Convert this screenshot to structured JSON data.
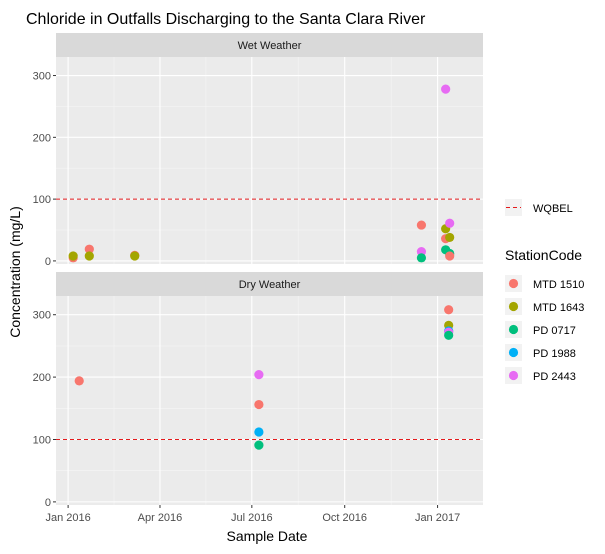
{
  "chart_data": {
    "type": "scatter",
    "title": "Chloride in Outfalls Discharging to the Santa Clara River",
    "xlabel": "Sample Date",
    "ylabel": "Concentration (mg/L)",
    "xlim": [
      "2015-12-20",
      "2017-02-15"
    ],
    "ylim": [
      -5,
      330
    ],
    "x_ticks": [
      {
        "date": "2016-01-01",
        "label": "Jan 2016"
      },
      {
        "date": "2016-04-01",
        "label": "Apr 2016"
      },
      {
        "date": "2016-07-01",
        "label": "Jul 2016"
      },
      {
        "date": "2016-10-01",
        "label": "Oct 2016"
      },
      {
        "date": "2017-01-01",
        "label": "Jan 2017"
      }
    ],
    "y_ticks": [
      0,
      100,
      200,
      300
    ],
    "grid": true,
    "reference_line": {
      "label": "WQBEL",
      "value": 100,
      "color": "#e41a1c",
      "style": "dashed"
    },
    "legend": {
      "title": "StationCode",
      "placement": "right"
    },
    "stations": [
      {
        "name": "MTD 1510",
        "color": "#F8766D"
      },
      {
        "name": "MTD 1643",
        "color": "#A3A500"
      },
      {
        "name": "PD 0717",
        "color": "#00BF7D"
      },
      {
        "name": "PD 1988",
        "color": "#00B0F6"
      },
      {
        "name": "PD 2443",
        "color": "#E76BF3"
      }
    ],
    "panels": [
      {
        "label": "Wet Weather",
        "points": [
          {
            "station": "MTD 1510",
            "x": "2016-01-06",
            "y": 5
          },
          {
            "station": "MTD 1643",
            "x": "2016-01-06",
            "y": 8
          },
          {
            "station": "MTD 1510",
            "x": "2016-01-22",
            "y": 19
          },
          {
            "station": "MTD 1643",
            "x": "2016-01-22",
            "y": 8
          },
          {
            "station": "MTD 1510",
            "x": "2016-03-07",
            "y": 9
          },
          {
            "station": "MTD 1643",
            "x": "2016-03-07",
            "y": 8
          },
          {
            "station": "MTD 1510",
            "x": "2016-12-16",
            "y": 58
          },
          {
            "station": "PD 2443",
            "x": "2016-12-16",
            "y": 15
          },
          {
            "station": "PD 0717",
            "x": "2016-12-16",
            "y": 5
          },
          {
            "station": "MTD 1643",
            "x": "2017-01-09",
            "y": 52
          },
          {
            "station": "MTD 1510",
            "x": "2017-01-09",
            "y": 36
          },
          {
            "station": "PD 0717",
            "x": "2017-01-09",
            "y": 18
          },
          {
            "station": "PD 2443",
            "x": "2017-01-09",
            "y": 278
          },
          {
            "station": "PD 2443",
            "x": "2017-01-13",
            "y": 61
          },
          {
            "station": "MTD 1643",
            "x": "2017-01-13",
            "y": 38
          },
          {
            "station": "PD 0717",
            "x": "2017-01-13",
            "y": 12
          },
          {
            "station": "MTD 1510",
            "x": "2017-01-13",
            "y": 8
          }
        ]
      },
      {
        "label": "Dry Weather",
        "points": [
          {
            "station": "MTD 1510",
            "x": "2016-01-12",
            "y": 194
          },
          {
            "station": "PD 2443",
            "x": "2016-07-08",
            "y": 204
          },
          {
            "station": "MTD 1510",
            "x": "2016-07-08",
            "y": 156
          },
          {
            "station": "PD 1988",
            "x": "2016-07-08",
            "y": 112
          },
          {
            "station": "PD 0717",
            "x": "2016-07-08",
            "y": 91
          },
          {
            "station": "MTD 1510",
            "x": "2017-01-12",
            "y": 308
          },
          {
            "station": "MTD 1643",
            "x": "2017-01-12",
            "y": 283
          },
          {
            "station": "PD 1988",
            "x": "2017-01-12",
            "y": 274
          },
          {
            "station": "PD 2443",
            "x": "2017-01-12",
            "y": 272
          },
          {
            "station": "PD 0717",
            "x": "2017-01-12",
            "y": 267
          }
        ]
      }
    ]
  }
}
